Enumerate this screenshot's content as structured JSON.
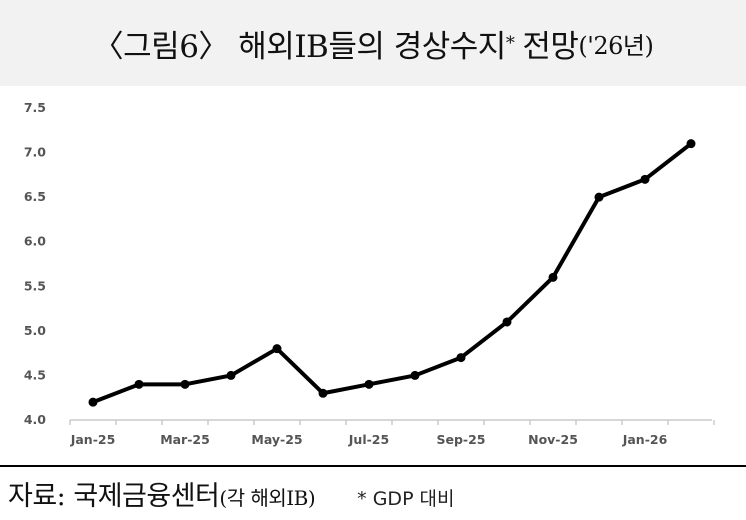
{
  "title": {
    "main": "〈그림6〉 해외IB들의 경상수지",
    "asterisk": "*",
    "tail": "전망",
    "paren": "('26년)"
  },
  "chart_data": {
    "type": "line",
    "title": "〈그림6〉 해외IB들의 경상수지* 전망('26년)",
    "xlabel": "",
    "ylabel": "",
    "x": [
      "Jan-25",
      "Feb-25",
      "Mar-25",
      "Apr-25",
      "May-25",
      "Jun-25",
      "Jul-25",
      "Aug-25",
      "Sep-25",
      "Oct-25",
      "Nov-25",
      "Dec-25",
      "Jan-26",
      "Feb-26"
    ],
    "x_tick_labels": [
      "Jan-25",
      "Mar-25",
      "May-25",
      "Jul-25",
      "Sep-25",
      "Nov-25",
      "Jan-26"
    ],
    "y_tick_labels": [
      "4.0",
      "4.5",
      "5.0",
      "5.5",
      "6.0",
      "6.5",
      "7.0",
      "7.5"
    ],
    "series": [
      {
        "values": [
          4.2,
          4.4,
          4.4,
          4.5,
          4.8,
          4.3,
          4.4,
          4.5,
          4.7,
          5.1,
          5.6,
          6.5,
          6.7,
          7.1
        ]
      }
    ],
    "ylim": [
      4.0,
      7.5
    ],
    "grid": false,
    "legend": "none",
    "line_color": "#000000"
  },
  "footer": {
    "source_label": "자료: 국제금융센터",
    "source_paren": "(각 해외IB)",
    "note": "* GDP 대비"
  }
}
